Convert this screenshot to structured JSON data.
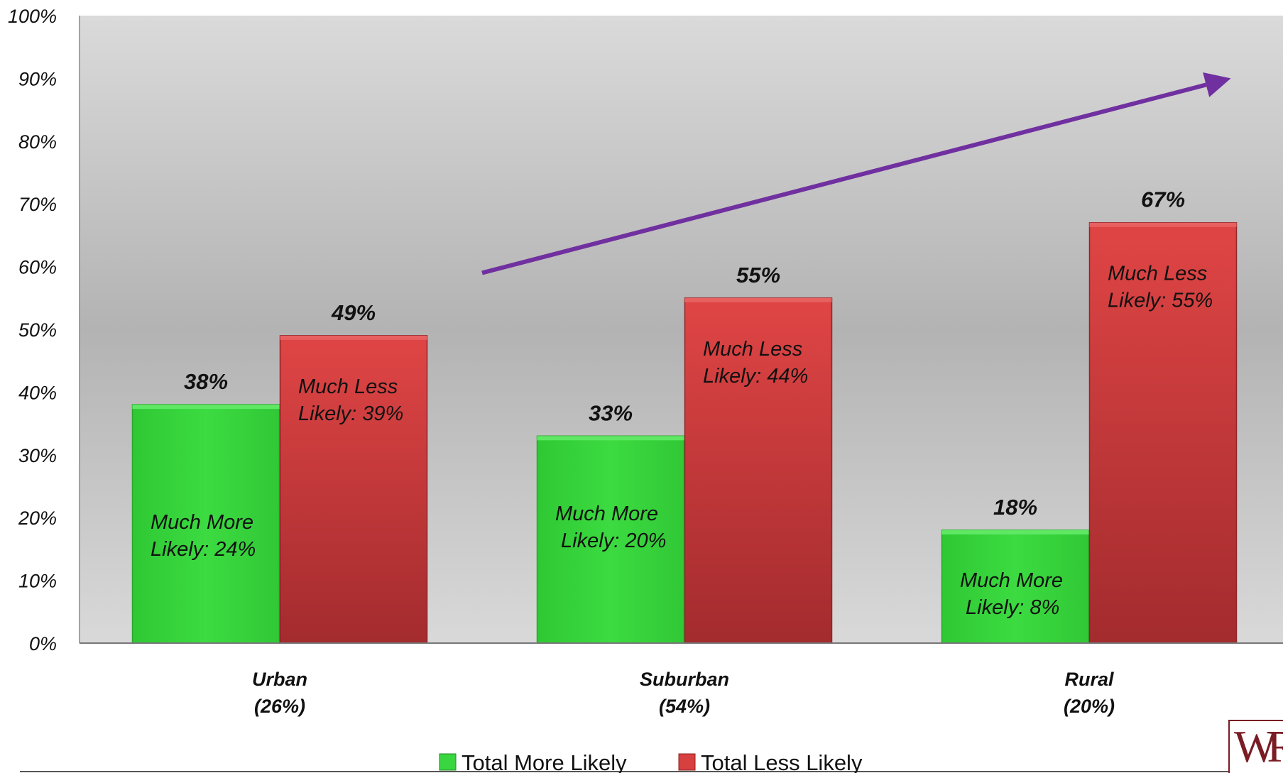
{
  "chart_data": {
    "type": "bar",
    "categories": [
      {
        "line1": "Urban",
        "line2": "(26%)"
      },
      {
        "line1": "Suburban",
        "line2": "(54%)"
      },
      {
        "line1": "Rural",
        "line2": "(20%)"
      }
    ],
    "series": [
      {
        "name": "Total More Likely",
        "color": "#3ad63f",
        "values": [
          38,
          33,
          18
        ],
        "value_labels": [
          "38%",
          "33%",
          "18%"
        ],
        "inner_labels": [
          [
            "Much More",
            "Likely: 24%"
          ],
          [
            "Much More",
            " Likely: 20%"
          ],
          [
            "Much More",
            " Likely: 8%"
          ]
        ]
      },
      {
        "name": "Total Less Likely",
        "color": "#d84040",
        "values": [
          49,
          55,
          67
        ],
        "value_labels": [
          "49%",
          "55%",
          "67%"
        ],
        "inner_labels": [
          [
            "Much Less",
            "Likely:  39%"
          ],
          [
            "Much Less",
            "Likely: 44%"
          ],
          [
            "Much Less",
            "Likely: 55%"
          ]
        ]
      }
    ],
    "y_ticks": [
      "0%",
      "10%",
      "20%",
      "30%",
      "40%",
      "50%",
      "60%",
      "70%",
      "80%",
      "90%",
      "100%"
    ],
    "ylim": [
      0,
      100
    ],
    "legend_position": "bottom",
    "annotation": {
      "type": "arrow",
      "color": "#7030a0",
      "from": [
        0.5,
        59
      ],
      "to": [
        2.35,
        90
      ]
    }
  },
  "logo_text": "WR"
}
